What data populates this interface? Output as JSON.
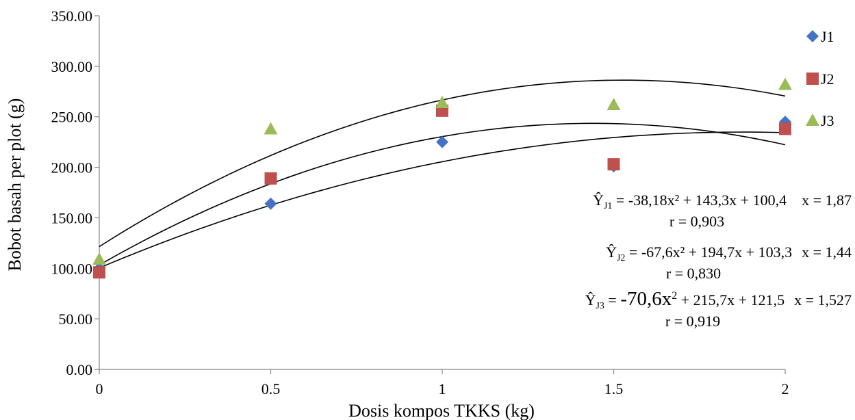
{
  "chart_data": {
    "type": "scatter",
    "xlabel": "Dosis kompos TKKS (kg)",
    "ylabel": "Bobot basah per plot (g)",
    "xlim": [
      0,
      2
    ],
    "ylim": [
      0,
      350
    ],
    "x_ticks": [
      "0",
      "0.5",
      "1",
      "1.5",
      "2"
    ],
    "y_ticks": [
      "0.00",
      "50.00",
      "100.00",
      "150.00",
      "200.00",
      "250.00",
      "300.00",
      "350.00"
    ],
    "grid": false,
    "legend_position": "right",
    "x": [
      0,
      0.5,
      1,
      1.5,
      2
    ],
    "series": [
      {
        "name": "J1",
        "marker": "diamond",
        "color": "#4472C4",
        "values": [
          100,
          164,
          225,
          201,
          245
        ],
        "fit": {
          "a": -38.18,
          "b": 143.3,
          "c": 100.4
        },
        "equation_prefix": "Ŷ",
        "equation_sub": "J1",
        "equation": " = -38,18x² + 143,3x + 100,4",
        "optimum": "x = 1,87",
        "r": "r = 0,903"
      },
      {
        "name": "J2",
        "marker": "square",
        "color": "#C0504D",
        "values": [
          96,
          189,
          256,
          203,
          238
        ],
        "fit": {
          "a": -67.6,
          "b": 194.7,
          "c": 103.3
        },
        "equation_prefix": "Ŷ",
        "equation_sub": "J2",
        "equation": " = -67,6x² + 194,7x + 103,3",
        "optimum": "x = 1,44",
        "r": "r = 0,830"
      },
      {
        "name": "J3",
        "marker": "triangle",
        "color": "#9BBB59",
        "values": [
          109,
          238,
          264,
          262,
          282
        ],
        "fit": {
          "a": -70.6,
          "b": 215.7,
          "c": 121.5
        },
        "equation_prefix": "Ŷ",
        "equation_sub": "J3",
        "equation_pre": " = ",
        "equation_big": "-70,6x",
        "equation_big_sup": "2",
        "equation_rest": " + 215,7x + 121,5",
        "optimum": "x = 1,527",
        "r": "r = 0,919"
      }
    ]
  }
}
